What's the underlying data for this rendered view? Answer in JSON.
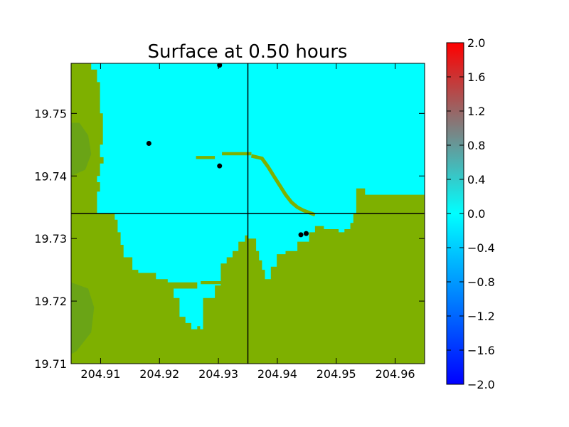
{
  "chart_data": {
    "type": "heatmap",
    "title": "Surface at 0.50 hours",
    "xlim": [
      204.905,
      204.965
    ],
    "ylim": [
      19.71,
      19.758
    ],
    "x_ticks": [
      204.91,
      204.92,
      204.93,
      204.94,
      204.95,
      204.96
    ],
    "x_tick_labels": [
      "204.91",
      "204.92",
      "204.93",
      "204.94",
      "204.95",
      "204.96"
    ],
    "y_ticks": [
      19.71,
      19.72,
      19.73,
      19.74,
      19.75
    ],
    "y_tick_labels": [
      "19.71",
      "19.72",
      "19.73",
      "19.74",
      "19.75"
    ],
    "grid": false,
    "crosshair": {
      "x": 204.935,
      "y": 19.734
    },
    "colors": {
      "water": "#00ffff",
      "land": "#7eb000",
      "land_dark": "#5a9a28",
      "marker": "#000000",
      "axis": "#000000"
    },
    "land_polygons": [
      [
        [
          204.905,
          19.758
        ],
        [
          204.9084,
          19.758
        ],
        [
          204.9084,
          19.757
        ],
        [
          204.9094,
          19.757
        ],
        [
          204.9094,
          19.755
        ],
        [
          204.9099,
          19.755
        ],
        [
          204.9099,
          19.75
        ],
        [
          204.9104,
          19.75
        ],
        [
          204.9104,
          19.745
        ],
        [
          204.9099,
          19.745
        ],
        [
          204.9099,
          19.743
        ],
        [
          204.9105,
          19.743
        ],
        [
          204.9105,
          19.742
        ],
        [
          204.9099,
          19.742
        ],
        [
          204.9099,
          19.74
        ],
        [
          204.9094,
          19.74
        ],
        [
          204.9094,
          19.739
        ],
        [
          204.9099,
          19.739
        ],
        [
          204.9099,
          19.7375
        ],
        [
          204.9094,
          19.7375
        ],
        [
          204.9094,
          19.734
        ],
        [
          204.905,
          19.734
        ]
      ],
      [
        [
          204.905,
          19.734
        ],
        [
          204.9124,
          19.734
        ],
        [
          204.9124,
          19.733
        ],
        [
          204.9129,
          19.733
        ],
        [
          204.9129,
          19.731
        ],
        [
          204.9134,
          19.731
        ],
        [
          204.9134,
          19.729
        ],
        [
          204.9139,
          19.729
        ],
        [
          204.9139,
          19.727
        ],
        [
          204.9154,
          19.727
        ],
        [
          204.9154,
          19.725
        ],
        [
          204.9164,
          19.725
        ],
        [
          204.9164,
          19.7245
        ],
        [
          204.9194,
          19.7245
        ],
        [
          204.9194,
          19.7235
        ],
        [
          204.9214,
          19.7235
        ],
        [
          204.9214,
          19.723
        ],
        [
          204.9264,
          19.723
        ],
        [
          204.9264,
          19.722
        ],
        [
          204.9224,
          19.722
        ],
        [
          204.9224,
          19.7205
        ],
        [
          204.9234,
          19.7205
        ],
        [
          204.9234,
          19.7175
        ],
        [
          204.9244,
          19.7175
        ],
        [
          204.9244,
          19.7165
        ],
        [
          204.9254,
          19.7165
        ],
        [
          204.9254,
          19.7155
        ],
        [
          204.9264,
          19.7155
        ],
        [
          204.9264,
          19.716
        ],
        [
          204.9269,
          19.716
        ],
        [
          204.9269,
          19.7155
        ],
        [
          204.9274,
          19.7155
        ],
        [
          204.9274,
          19.7205
        ],
        [
          204.9294,
          19.7205
        ],
        [
          204.9294,
          19.7225
        ],
        [
          204.9304,
          19.7225
        ],
        [
          204.9304,
          19.726
        ],
        [
          204.9314,
          19.726
        ],
        [
          204.9314,
          19.727
        ],
        [
          204.9324,
          19.727
        ],
        [
          204.9324,
          19.728
        ],
        [
          204.9334,
          19.728
        ],
        [
          204.9334,
          19.7295
        ],
        [
          204.9345,
          19.7295
        ],
        [
          204.9345,
          19.7305
        ],
        [
          204.935,
          19.7305
        ],
        [
          204.935,
          19.71
        ],
        [
          204.905,
          19.71
        ]
      ],
      [
        [
          204.935,
          19.71
        ],
        [
          204.935,
          19.73
        ],
        [
          204.9364,
          19.73
        ],
        [
          204.9364,
          19.728
        ],
        [
          204.9369,
          19.728
        ],
        [
          204.9369,
          19.7265
        ],
        [
          204.9374,
          19.7265
        ],
        [
          204.9374,
          19.725
        ],
        [
          204.9379,
          19.725
        ],
        [
          204.9379,
          19.7235
        ],
        [
          204.9389,
          19.7235
        ],
        [
          204.9389,
          19.7255
        ],
        [
          204.9399,
          19.7255
        ],
        [
          204.9399,
          19.7275
        ],
        [
          204.9414,
          19.7275
        ],
        [
          204.9414,
          19.728
        ],
        [
          204.9434,
          19.728
        ],
        [
          204.9434,
          19.7295
        ],
        [
          204.9454,
          19.7295
        ],
        [
          204.9454,
          19.731
        ],
        [
          204.9464,
          19.731
        ],
        [
          204.9464,
          19.732
        ],
        [
          204.9479,
          19.732
        ],
        [
          204.9479,
          19.7315
        ],
        [
          204.9504,
          19.7315
        ],
        [
          204.9504,
          19.731
        ],
        [
          204.9514,
          19.731
        ],
        [
          204.9514,
          19.7315
        ],
        [
          204.9524,
          19.7315
        ],
        [
          204.9524,
          19.7325
        ],
        [
          204.9529,
          19.7325
        ],
        [
          204.9529,
          19.734
        ],
        [
          204.965,
          19.734
        ],
        [
          204.965,
          19.71
        ]
      ],
      [
        [
          204.9534,
          19.734
        ],
        [
          204.965,
          19.734
        ],
        [
          204.965,
          19.737
        ],
        [
          204.9549,
          19.737
        ],
        [
          204.9549,
          19.738
        ],
        [
          204.9534,
          19.738
        ]
      ]
    ],
    "land_dark_polygons": [
      [
        [
          204.905,
          19.7485
        ],
        [
          204.9064,
          19.7485
        ],
        [
          204.9079,
          19.7465
        ],
        [
          204.9084,
          19.7435
        ],
        [
          204.9074,
          19.741
        ],
        [
          204.905,
          19.74
        ]
      ],
      [
        [
          204.905,
          19.723
        ],
        [
          204.9079,
          19.722
        ],
        [
          204.9089,
          19.719
        ],
        [
          204.9084,
          19.715
        ],
        [
          204.9059,
          19.712
        ],
        [
          204.905,
          19.7115
        ]
      ]
    ],
    "bars": [
      [
        [
          204.9262,
          19.7427
        ],
        [
          204.9294,
          19.7427
        ],
        [
          204.9294,
          19.7432
        ],
        [
          204.9262,
          19.7432
        ]
      ],
      [
        [
          204.9306,
          19.7433
        ],
        [
          204.9356,
          19.7433
        ],
        [
          204.9356,
          19.7438
        ],
        [
          204.9306,
          19.7438
        ]
      ],
      [
        [
          204.927,
          19.7227
        ],
        [
          204.9318,
          19.7227
        ],
        [
          204.9318,
          19.7232
        ],
        [
          204.927,
          19.7232
        ]
      ]
    ],
    "channel_diagonal": [
      [
        204.9356,
        19.7432
      ],
      [
        204.9374,
        19.7428
      ],
      [
        204.9384,
        19.7415
      ],
      [
        204.9394,
        19.74
      ],
      [
        204.9404,
        19.7385
      ],
      [
        204.9414,
        19.737
      ],
      [
        204.9424,
        19.7358
      ],
      [
        204.9434,
        19.735
      ],
      [
        204.9444,
        19.7345
      ],
      [
        204.9464,
        19.7338
      ]
    ],
    "markers": [
      {
        "x": 204.9302,
        "y": 19.7577
      },
      {
        "x": 204.9182,
        "y": 19.7452
      },
      {
        "x": 204.9302,
        "y": 19.7416
      },
      {
        "x": 204.944,
        "y": 19.7306
      },
      {
        "x": 204.9449,
        "y": 19.7308
      }
    ],
    "colorbar": {
      "range": [
        -2.0,
        2.0
      ],
      "tick_labels": [
        "2.0",
        "1.6",
        "1.2",
        "0.8",
        "0.4",
        "0.0",
        "−0.4",
        "−0.8",
        "−1.2",
        "−1.6",
        "−2.0"
      ],
      "tick_values": [
        2.0,
        1.6,
        1.2,
        0.8,
        0.4,
        0.0,
        -0.4,
        -0.8,
        -1.2,
        -1.6,
        -2.0
      ],
      "gradient": [
        "#0000ff",
        "#00ffff",
        "#7f7f7f",
        "#ff0000"
      ]
    }
  }
}
